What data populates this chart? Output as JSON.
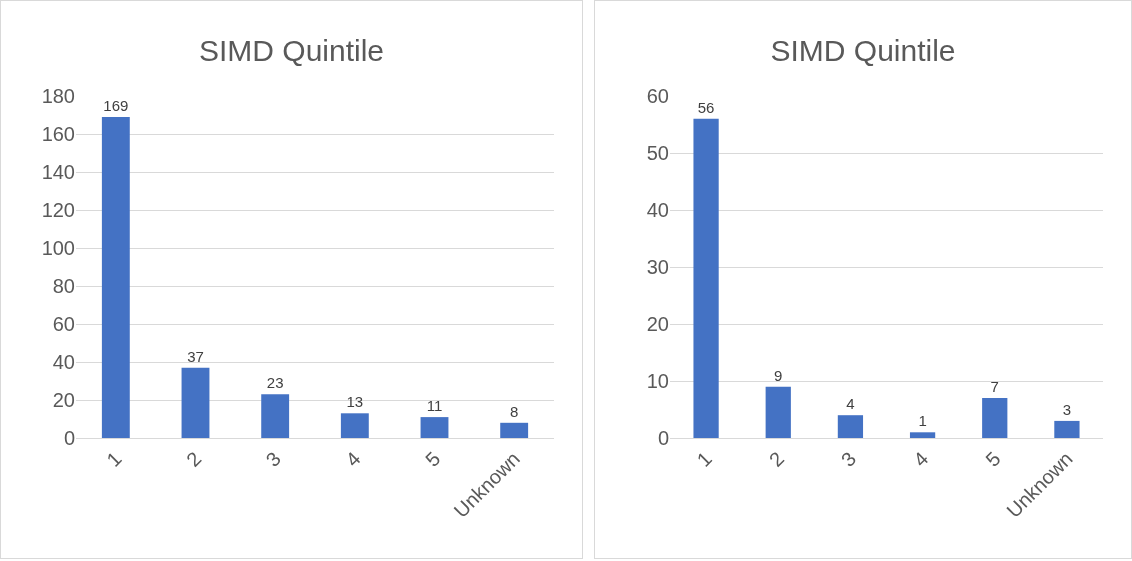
{
  "chart_data": [
    {
      "type": "bar",
      "title": "SIMD Quintile",
      "categories": [
        "1",
        "2",
        "3",
        "4",
        "5",
        "Unknown"
      ],
      "values": [
        169,
        37,
        23,
        13,
        11,
        8
      ],
      "color": "#4472c4",
      "ylim": [
        0,
        180
      ],
      "yticks": [
        0,
        20,
        40,
        60,
        80,
        100,
        120,
        140,
        160,
        180
      ],
      "grid": "y",
      "data_labels": true
    },
    {
      "type": "bar",
      "title": "SIMD Quintile",
      "categories": [
        "1",
        "2",
        "3",
        "4",
        "5",
        "Unknown"
      ],
      "values": [
        56,
        9,
        4,
        1,
        7,
        3
      ],
      "color": "#4472c4",
      "ylim": [
        0,
        60
      ],
      "yticks": [
        0,
        10,
        20,
        30,
        40,
        50,
        60
      ],
      "grid": "y",
      "data_labels": true
    }
  ]
}
